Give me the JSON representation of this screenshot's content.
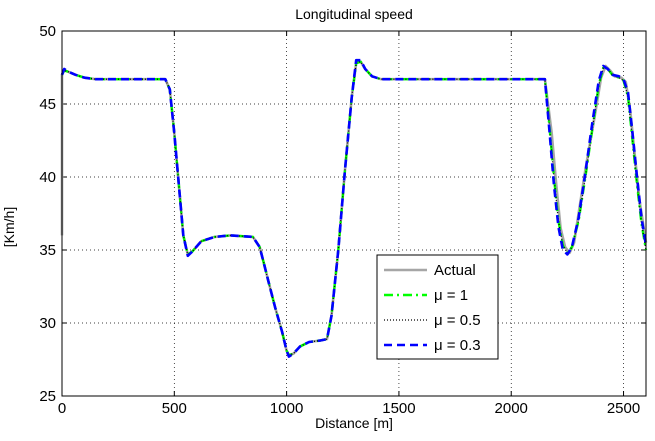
{
  "chart_data": {
    "type": "line",
    "title": "Longitudinal speed",
    "xlabel": "Distance [m]",
    "ylabel": "[Km/h]",
    "xlim": [
      0,
      2600
    ],
    "ylim": [
      25,
      50
    ],
    "xticks": [
      "0",
      "500",
      "1000",
      "1500",
      "2000",
      "2500"
    ],
    "yticks": [
      "25",
      "30",
      "35",
      "40",
      "45",
      "50"
    ],
    "grid": true,
    "legend_position": "bottom-center",
    "series": [
      {
        "name": "Actual",
        "color": "#a6a6a6",
        "style": "solid",
        "x": [
          0,
          0,
          10,
          30,
          60,
          100,
          150,
          200,
          300,
          400,
          460,
          480,
          500,
          520,
          540,
          560,
          580,
          620,
          680,
          750,
          850,
          880,
          900,
          920,
          950,
          980,
          1000,
          1010,
          1030,
          1060,
          1100,
          1150,
          1180,
          1200,
          1230,
          1260,
          1290,
          1310,
          1330,
          1350,
          1380,
          1420,
          1500,
          1600,
          1800,
          2000,
          2100,
          2150,
          2180,
          2200,
          2220,
          2240,
          2260,
          2280,
          2300,
          2330,
          2370,
          2400,
          2420,
          2440,
          2460,
          2490,
          2510,
          2530,
          2550,
          2570,
          2600
        ],
        "y": [
          36,
          47,
          47.3,
          47.2,
          47,
          46.8,
          46.7,
          46.7,
          46.7,
          46.7,
          46.7,
          46,
          43,
          39.5,
          36,
          34.7,
          34.9,
          35.6,
          35.9,
          36,
          35.9,
          35.2,
          34,
          32.8,
          31,
          29.4,
          28.1,
          27.8,
          27.9,
          28.4,
          28.7,
          28.8,
          28.9,
          30.5,
          35,
          40.5,
          45.5,
          47.8,
          47.9,
          47.4,
          46.9,
          46.7,
          46.7,
          46.7,
          46.7,
          46.7,
          46.7,
          46.7,
          43,
          39.5,
          36.5,
          35.2,
          34.8,
          35.5,
          37.5,
          40.5,
          44,
          46.8,
          47.6,
          47.3,
          46.9,
          46.8,
          46.5,
          44.5,
          41.5,
          38.5,
          35.5
        ]
      },
      {
        "name": "μ = 1",
        "color": "#00ff00",
        "style": "dashdot",
        "x": [
          0,
          10,
          30,
          60,
          100,
          150,
          200,
          300,
          400,
          460,
          480,
          500,
          520,
          540,
          560,
          580,
          620,
          680,
          750,
          850,
          880,
          900,
          920,
          950,
          980,
          1000,
          1010,
          1030,
          1060,
          1100,
          1150,
          1180,
          1200,
          1230,
          1260,
          1290,
          1310,
          1330,
          1350,
          1380,
          1420,
          1500,
          1600,
          1800,
          2000,
          2100,
          2150,
          2170,
          2190,
          2210,
          2230,
          2250,
          2270,
          2300,
          2330,
          2360,
          2390,
          2410,
          2430,
          2450,
          2480,
          2500,
          2520,
          2540,
          2560,
          2580,
          2600
        ],
        "y": [
          47,
          47.3,
          47.2,
          47,
          46.8,
          46.7,
          46.7,
          46.7,
          46.7,
          46.7,
          46,
          43,
          39.5,
          36,
          34.7,
          34.9,
          35.6,
          35.9,
          36,
          35.9,
          35.2,
          34,
          32.8,
          31,
          29.4,
          28.1,
          27.8,
          27.9,
          28.4,
          28.7,
          28.8,
          28.9,
          30.5,
          35,
          40.5,
          45.5,
          47.8,
          47.9,
          47.4,
          46.9,
          46.7,
          46.7,
          46.7,
          46.7,
          46.7,
          46.7,
          46.7,
          43.5,
          40,
          37,
          35.3,
          34.8,
          35.2,
          37,
          40,
          43.2,
          46.3,
          47.5,
          47.4,
          47,
          46.8,
          46.6,
          45.5,
          42.5,
          39.5,
          36.8,
          35
        ]
      },
      {
        "name": "μ = 0.5",
        "color": "#000000",
        "style": "dotted",
        "x": [
          0,
          10,
          30,
          60,
          100,
          150,
          200,
          300,
          400,
          460,
          480,
          500,
          520,
          540,
          560,
          580,
          620,
          680,
          750,
          850,
          880,
          900,
          920,
          950,
          980,
          1000,
          1010,
          1030,
          1060,
          1100,
          1150,
          1180,
          1200,
          1230,
          1260,
          1290,
          1310,
          1330,
          1350,
          1380,
          1420,
          1500,
          1600,
          1800,
          2000,
          2100,
          2150,
          2170,
          2190,
          2210,
          2230,
          2250,
          2270,
          2300,
          2330,
          2360,
          2390,
          2410,
          2430,
          2450,
          2480,
          2500,
          2520,
          2540,
          2560,
          2580,
          2600
        ],
        "y": [
          47,
          47.3,
          47.2,
          47,
          46.8,
          46.7,
          46.7,
          46.7,
          46.7,
          46.7,
          46,
          43,
          39.5,
          36,
          34.7,
          34.9,
          35.6,
          35.9,
          36,
          35.9,
          35.2,
          34,
          32.8,
          31,
          29.4,
          28.1,
          27.8,
          27.9,
          28.4,
          28.7,
          28.8,
          28.9,
          30.5,
          35,
          40.5,
          45.5,
          47.8,
          47.9,
          47.4,
          46.9,
          46.7,
          46.7,
          46.7,
          46.7,
          46.7,
          46.7,
          46.7,
          43.5,
          40,
          37,
          35.3,
          34.8,
          35.2,
          37,
          40,
          43.2,
          46.3,
          47.5,
          47.4,
          47,
          46.8,
          46.6,
          45.5,
          42.5,
          39.5,
          36.8,
          35
        ]
      },
      {
        "name": "μ = 0.3",
        "color": "#0000ff",
        "style": "dashed",
        "x": [
          0,
          10,
          30,
          60,
          100,
          150,
          200,
          300,
          400,
          460,
          480,
          500,
          520,
          540,
          560,
          580,
          620,
          680,
          750,
          850,
          880,
          900,
          920,
          950,
          980,
          1000,
          1010,
          1030,
          1060,
          1100,
          1150,
          1180,
          1200,
          1230,
          1260,
          1290,
          1310,
          1330,
          1350,
          1380,
          1420,
          1500,
          1600,
          1800,
          2000,
          2100,
          2150,
          2170,
          2190,
          2210,
          2230,
          2250,
          2270,
          2300,
          2330,
          2360,
          2390,
          2410,
          2430,
          2450,
          2480,
          2500,
          2520,
          2540,
          2560,
          2580,
          2600
        ],
        "y": [
          47,
          47.4,
          47.2,
          47,
          46.8,
          46.7,
          46.7,
          46.7,
          46.7,
          46.7,
          46,
          43,
          39.5,
          36,
          34.6,
          34.9,
          35.6,
          35.9,
          36,
          35.9,
          35.2,
          34,
          32.8,
          31,
          29.4,
          28.1,
          27.7,
          27.9,
          28.4,
          28.7,
          28.8,
          28.9,
          30.5,
          35,
          40.5,
          45.5,
          48,
          48,
          47.4,
          46.9,
          46.7,
          46.7,
          46.7,
          46.7,
          46.7,
          46.7,
          46.7,
          43.2,
          39.5,
          36.6,
          35,
          34.7,
          35.2,
          37.2,
          40.3,
          43.6,
          46.6,
          47.6,
          47.4,
          47,
          46.9,
          46.7,
          45.8,
          43,
          40,
          37.2,
          35.3
        ]
      }
    ]
  }
}
